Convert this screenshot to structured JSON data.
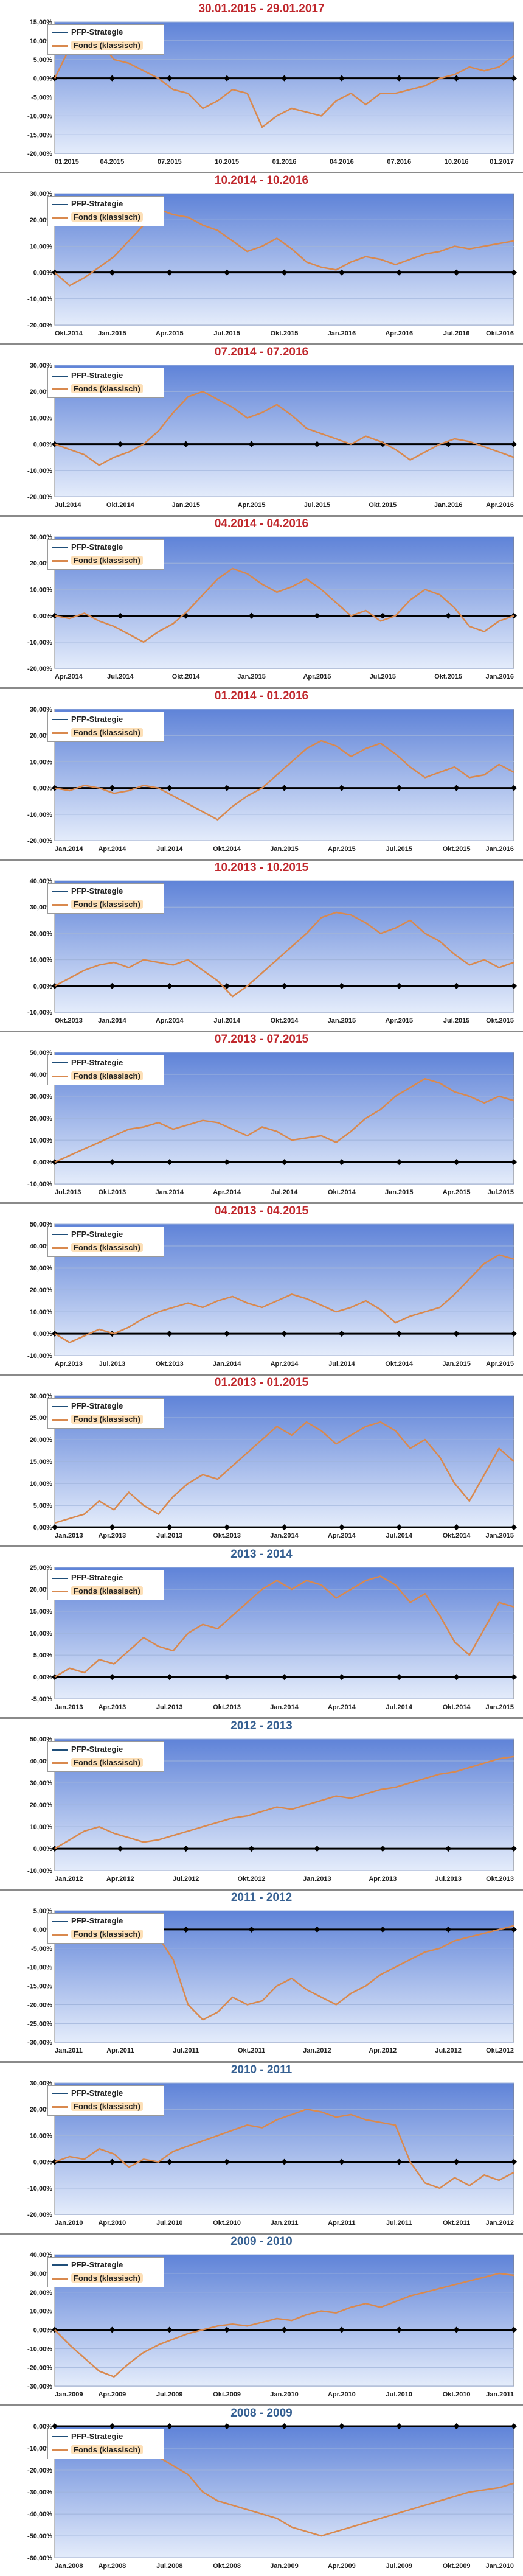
{
  "colors": {
    "title_red": "#c0282d",
    "title_blue": "#366092",
    "strategy_line": "#1f4e79",
    "fund_line": "#d9894e",
    "plot_top": "#5f83d8",
    "plot_bottom": "#e4ecfb"
  },
  "legend": {
    "strategy": "PFP-Strategie",
    "fund": "Fonds (klassisch)"
  },
  "chart_data": [
    {
      "type": "line",
      "title": "30.01.2015 - 29.01.2017",
      "title_color": "red",
      "ylim": [
        -20,
        15
      ],
      "yticks": [
        -20,
        -15,
        -10,
        -5,
        0,
        5,
        10,
        15
      ],
      "y_format": "2dp",
      "xticks": [
        "01.2015",
        "04.2015",
        "07.2015",
        "10.2015",
        "01.2016",
        "04.2016",
        "07.2016",
        "10.2016",
        "01.2017"
      ],
      "grid": true,
      "legend_position": "top-left",
      "series": [
        {
          "name": "PFP-Strategie",
          "values": [
            0
          ]
        },
        {
          "name": "Fonds (klassisch)",
          "values": [
            0,
            8,
            9,
            10,
            5,
            4,
            2,
            0,
            -3,
            -4,
            -8,
            -6,
            -3,
            -4,
            -13,
            -10,
            -8,
            -9,
            -10,
            -6,
            -4,
            -7,
            -4,
            -4,
            -3,
            -2,
            0,
            1,
            3,
            2,
            3,
            6
          ]
        }
      ]
    },
    {
      "type": "line",
      "title": "10.2014 - 10.2016",
      "title_color": "red",
      "ylim": [
        -20,
        30
      ],
      "yticks": [
        -20,
        -10,
        0,
        10,
        20,
        30
      ],
      "y_format": "2dp",
      "xticks": [
        "Okt.2014",
        "Jan.2015",
        "Apr.2015",
        "Jul.2015",
        "Okt.2015",
        "Jan.2016",
        "Apr.2016",
        "Jul.2016",
        "Okt.2016"
      ],
      "grid": true,
      "legend_position": "top-left",
      "series": [
        {
          "name": "PFP-Strategie",
          "values": [
            0
          ]
        },
        {
          "name": "Fonds (klassisch)",
          "values": [
            0,
            -5,
            -2,
            2,
            6,
            12,
            18,
            24,
            22,
            21,
            18,
            16,
            12,
            8,
            10,
            13,
            9,
            4,
            2,
            1,
            4,
            6,
            5,
            3,
            5,
            7,
            8,
            10,
            9,
            10,
            11,
            12
          ]
        }
      ]
    },
    {
      "type": "line",
      "title": "07.2014 - 07.2016",
      "title_color": "red",
      "ylim": [
        -20,
        30
      ],
      "yticks": [
        -20,
        -10,
        0,
        10,
        20,
        30
      ],
      "y_format": "2dp",
      "xticks": [
        "Jul.2014",
        "Okt.2014",
        "Jan.2015",
        "Apr.2015",
        "Jul.2015",
        "Okt.2015",
        "Jan.2016",
        "Apr.2016"
      ],
      "grid": true,
      "legend_position": "top-left",
      "series": [
        {
          "name": "PFP-Strategie",
          "values": [
            0
          ]
        },
        {
          "name": "Fonds (klassisch)",
          "values": [
            0,
            -2,
            -4,
            -8,
            -5,
            -3,
            0,
            5,
            12,
            18,
            20,
            17,
            14,
            10,
            12,
            15,
            11,
            6,
            4,
            2,
            0,
            3,
            1,
            -2,
            -6,
            -3,
            0,
            2,
            1,
            -1,
            -3,
            -5
          ]
        }
      ]
    },
    {
      "type": "line",
      "title": "04.2014 - 04.2016",
      "title_color": "red",
      "ylim": [
        -20,
        30
      ],
      "yticks": [
        -20,
        -10,
        0,
        10,
        20,
        30
      ],
      "y_format": "2dp",
      "xticks": [
        "Apr.2014",
        "Jul.2014",
        "Okt.2014",
        "Jan.2015",
        "Apr.2015",
        "Jul.2015",
        "Okt.2015",
        "Jan.2016"
      ],
      "grid": true,
      "legend_position": "top-left",
      "series": [
        {
          "name": "PFP-Strategie",
          "values": [
            0
          ]
        },
        {
          "name": "Fonds (klassisch)",
          "values": [
            0,
            -1,
            1,
            -2,
            -4,
            -7,
            -10,
            -6,
            -3,
            2,
            8,
            14,
            18,
            16,
            12,
            9,
            11,
            14,
            10,
            5,
            0,
            2,
            -2,
            0,
            6,
            10,
            8,
            3,
            -4,
            -6,
            -2,
            0
          ]
        }
      ]
    },
    {
      "type": "line",
      "title": "01.2014 - 01.2016",
      "title_color": "red",
      "ylim": [
        -20,
        30
      ],
      "yticks": [
        -20,
        -10,
        0,
        10,
        20,
        30
      ],
      "y_format": "2dp",
      "xticks": [
        "Jan.2014",
        "Apr.2014",
        "Jul.2014",
        "Okt.2014",
        "Jan.2015",
        "Apr.2015",
        "Jul.2015",
        "Okt.2015",
        "Jan.2016"
      ],
      "grid": true,
      "legend_position": "top-left",
      "series": [
        {
          "name": "PFP-Strategie",
          "values": [
            0
          ]
        },
        {
          "name": "Fonds (klassisch)",
          "values": [
            0,
            -1,
            1,
            0,
            -2,
            -1,
            1,
            0,
            -3,
            -6,
            -9,
            -12,
            -7,
            -3,
            0,
            5,
            10,
            15,
            18,
            16,
            12,
            15,
            17,
            13,
            8,
            4,
            6,
            8,
            4,
            5,
            9,
            6
          ]
        }
      ]
    },
    {
      "type": "line",
      "title": "10.2013 - 10.2015",
      "title_color": "red",
      "ylim": [
        -10,
        40
      ],
      "yticks": [
        -10,
        0,
        10,
        20,
        30,
        40
      ],
      "y_format": "2dp",
      "xticks": [
        "Okt.2013",
        "Jan.2014",
        "Apr.2014",
        "Jul.2014",
        "Okt.2014",
        "Jan.2015",
        "Apr.2015",
        "Jul.2015",
        "Okt.2015"
      ],
      "grid": true,
      "legend_position": "top-left",
      "series": [
        {
          "name": "PFP-Strategie",
          "values": [
            0
          ]
        },
        {
          "name": "Fonds (klassisch)",
          "values": [
            0,
            3,
            6,
            8,
            9,
            7,
            10,
            9,
            8,
            10,
            6,
            2,
            -4,
            0,
            5,
            10,
            15,
            20,
            26,
            28,
            27,
            24,
            20,
            22,
            25,
            20,
            17,
            12,
            8,
            10,
            7,
            9
          ]
        }
      ]
    },
    {
      "type": "line",
      "title": "07.2013 - 07.2015",
      "title_color": "red",
      "ylim": [
        -10,
        50
      ],
      "yticks": [
        -10,
        0,
        10,
        20,
        30,
        40,
        50
      ],
      "y_format": "2dp",
      "xticks": [
        "Jul.2013",
        "Okt.2013",
        "Jan.2014",
        "Apr.2014",
        "Jul.2014",
        "Okt.2014",
        "Jan.2015",
        "Apr.2015",
        "Jul.2015"
      ],
      "grid": true,
      "legend_position": "top-left",
      "series": [
        {
          "name": "PFP-Strategie",
          "values": [
            0
          ]
        },
        {
          "name": "Fonds (klassisch)",
          "values": [
            0,
            3,
            6,
            9,
            12,
            15,
            16,
            18,
            15,
            17,
            19,
            18,
            15,
            12,
            16,
            14,
            10,
            11,
            12,
            9,
            14,
            20,
            24,
            30,
            34,
            38,
            36,
            32,
            30,
            27,
            30,
            28
          ]
        }
      ]
    },
    {
      "type": "line",
      "title": "04.2013 - 04.2015",
      "title_color": "red",
      "ylim": [
        -10,
        50
      ],
      "yticks": [
        -10,
        0,
        10,
        20,
        30,
        40,
        50
      ],
      "y_format": "2dp",
      "xticks": [
        "Apr.2013",
        "Jul.2013",
        "Okt.2013",
        "Jan.2014",
        "Apr.2014",
        "Jul.2014",
        "Okt.2014",
        "Jan.2015",
        "Apr.2015"
      ],
      "grid": true,
      "legend_position": "top-left",
      "series": [
        {
          "name": "PFP-Strategie",
          "values": [
            0
          ]
        },
        {
          "name": "Fonds (klassisch)",
          "values": [
            0,
            -4,
            -1,
            2,
            0,
            3,
            7,
            10,
            12,
            14,
            12,
            15,
            17,
            14,
            12,
            15,
            18,
            16,
            13,
            10,
            12,
            15,
            11,
            5,
            8,
            10,
            12,
            18,
            25,
            32,
            36,
            34
          ]
        }
      ]
    },
    {
      "type": "line",
      "title": "01.2013 - 01.2015",
      "title_color": "red",
      "ylim": [
        0,
        30
      ],
      "yticks": [
        0,
        5,
        10,
        15,
        20,
        25,
        30
      ],
      "y_format": "2dp",
      "xticks": [
        "Jan.2013",
        "Apr.2013",
        "Jul.2013",
        "Okt.2013",
        "Jan.2014",
        "Apr.2014",
        "Jul.2014",
        "Okt.2014",
        "Jan.2015"
      ],
      "grid": true,
      "legend_position": "top-left",
      "series": [
        {
          "name": "PFP-Strategie",
          "values": [
            0
          ]
        },
        {
          "name": "Fonds (klassisch)",
          "values": [
            1,
            2,
            3,
            6,
            4,
            8,
            5,
            3,
            7,
            10,
            12,
            11,
            14,
            17,
            20,
            23,
            21,
            24,
            22,
            19,
            21,
            23,
            24,
            22,
            18,
            20,
            16,
            10,
            6,
            12,
            18,
            15
          ]
        }
      ]
    },
    {
      "type": "line",
      "title": "2013 - 2014",
      "title_color": "blue",
      "ylim": [
        -5,
        25
      ],
      "yticks": [
        -5,
        0,
        5,
        10,
        15,
        20,
        25
      ],
      "y_format": "2dp",
      "xticks": [
        "Jan.2013",
        "Apr.2013",
        "Jul.2013",
        "Okt.2013",
        "Jan.2014",
        "Apr.2014",
        "Jul.2014",
        "Okt.2014",
        "Jan.2015"
      ],
      "grid": true,
      "legend_position": "top-left",
      "series": [
        {
          "name": "PFP-Strategie",
          "values": [
            0
          ]
        },
        {
          "name": "Fonds (klassisch)",
          "values": [
            0,
            2,
            1,
            4,
            3,
            6,
            9,
            7,
            6,
            10,
            12,
            11,
            14,
            17,
            20,
            22,
            20,
            22,
            21,
            18,
            20,
            22,
            23,
            21,
            17,
            19,
            14,
            8,
            5,
            11,
            17,
            16
          ]
        }
      ]
    },
    {
      "type": "line",
      "title": "2012 - 2013",
      "title_color": "blue",
      "ylim": [
        -10,
        50
      ],
      "yticks": [
        -10,
        0,
        10,
        20,
        30,
        40,
        50
      ],
      "y_format": "2dp",
      "xticks": [
        "Jan.2012",
        "Apr.2012",
        "Jul.2012",
        "Okt.2012",
        "Jan.2013",
        "Apr.2013",
        "Jul.2013",
        "Okt.2013"
      ],
      "grid": true,
      "legend_position": "top-left",
      "series": [
        {
          "name": "PFP-Strategie",
          "values": [
            0
          ]
        },
        {
          "name": "Fonds (klassisch)",
          "values": [
            0,
            4,
            8,
            10,
            7,
            5,
            3,
            4,
            6,
            8,
            10,
            12,
            14,
            15,
            17,
            19,
            18,
            20,
            22,
            24,
            23,
            25,
            27,
            28,
            30,
            32,
            34,
            35,
            37,
            39,
            41,
            42
          ]
        }
      ]
    },
    {
      "type": "line",
      "title": "2011 - 2012",
      "title_color": "blue",
      "ylim": [
        -30,
        5
      ],
      "yticks": [
        -30,
        -25,
        -20,
        -15,
        -10,
        -5,
        0,
        5
      ],
      "y_format": "2dp",
      "xticks": [
        "Jan.2011",
        "Apr.2011",
        "Jul.2011",
        "Okt.2011",
        "Jan.2012",
        "Apr.2012",
        "Jul.2012",
        "Okt.2012"
      ],
      "grid": true,
      "legend_position": "top-left",
      "series": [
        {
          "name": "PFP-Strategie",
          "values": [
            0
          ]
        },
        {
          "name": "Fonds (klassisch)",
          "values": [
            0,
            2,
            3,
            1,
            -1,
            2,
            0,
            -2,
            -8,
            -20,
            -24,
            -22,
            -18,
            -20,
            -19,
            -15,
            -13,
            -16,
            -18,
            -20,
            -17,
            -15,
            -12,
            -10,
            -8,
            -6,
            -5,
            -3,
            -2,
            -1,
            0,
            1
          ]
        }
      ]
    },
    {
      "type": "line",
      "title": "2010 - 2011",
      "title_color": "blue",
      "ylim": [
        -20,
        30
      ],
      "yticks": [
        -20,
        -10,
        0,
        10,
        20,
        30
      ],
      "y_format": "2dp",
      "xticks": [
        "Jan.2010",
        "Apr.2010",
        "Jul.2010",
        "Okt.2010",
        "Jan.2011",
        "Apr.2011",
        "Jul.2011",
        "Okt.2011",
        "Jan.2012"
      ],
      "grid": true,
      "legend_position": "top-left",
      "series": [
        {
          "name": "PFP-Strategie",
          "values": [
            0
          ]
        },
        {
          "name": "Fonds (klassisch)",
          "values": [
            0,
            2,
            1,
            5,
            3,
            -2,
            1,
            0,
            4,
            6,
            8,
            10,
            12,
            14,
            13,
            16,
            18,
            20,
            19,
            17,
            18,
            16,
            15,
            14,
            0,
            -8,
            -10,
            -6,
            -9,
            -5,
            -7,
            -4
          ]
        }
      ]
    },
    {
      "type": "line",
      "title": "2009 - 2010",
      "title_color": "blue",
      "ylim": [
        -30,
        40
      ],
      "yticks": [
        -30,
        -20,
        -10,
        0,
        10,
        20,
        30,
        40
      ],
      "y_format": "2dp",
      "xticks": [
        "Jan.2009",
        "Apr.2009",
        "Jul.2009",
        "Okt.2009",
        "Jan.2010",
        "Apr.2010",
        "Jul.2010",
        "Okt.2010",
        "Jan.2011"
      ],
      "grid": true,
      "legend_position": "top-left",
      "series": [
        {
          "name": "PFP-Strategie",
          "values": [
            0
          ]
        },
        {
          "name": "Fonds (klassisch)",
          "values": [
            0,
            -8,
            -15,
            -22,
            -25,
            -18,
            -12,
            -8,
            -5,
            -2,
            0,
            2,
            3,
            2,
            4,
            6,
            5,
            8,
            10,
            9,
            12,
            14,
            12,
            15,
            18,
            20,
            22,
            24,
            26,
            28,
            30,
            29
          ]
        }
      ]
    },
    {
      "type": "line",
      "title": "2008 - 2009",
      "title_color": "blue",
      "ylim": [
        -60,
        0
      ],
      "yticks": [
        -60,
        -50,
        -40,
        -30,
        -20,
        -10,
        0
      ],
      "y_format": "2dp",
      "xticks": [
        "Jan.2008",
        "Apr.2008",
        "Jul.2008",
        "Okt.2008",
        "Jan.2009",
        "Apr.2009",
        "Jul.2009",
        "Okt.2009",
        "Jan.2010"
      ],
      "grid": true,
      "legend_position": "top-left",
      "series": [
        {
          "name": "PFP-Strategie",
          "values": [
            0
          ]
        },
        {
          "name": "Fonds (klassisch)",
          "values": [
            -6,
            -8,
            -5,
            -7,
            -4,
            -6,
            -10,
            -14,
            -18,
            -22,
            -30,
            -34,
            -36,
            -38,
            -40,
            -42,
            -46,
            -48,
            -50,
            -48,
            -46,
            -44,
            -42,
            -40,
            -38,
            -36,
            -34,
            -32,
            -30,
            -29,
            -28,
            -26
          ]
        }
      ]
    }
  ]
}
